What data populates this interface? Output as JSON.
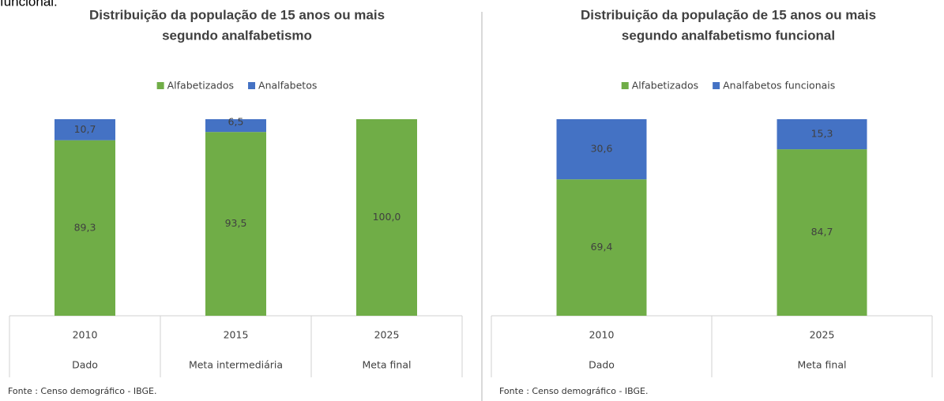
{
  "page_text": "funcional.",
  "chart_data": [
    {
      "type": "bar",
      "stacked": true,
      "title": "Distribuição da população de 15 anos ou mais",
      "subtitle": "segundo analfabetismo",
      "categories": [
        "2010",
        "2015",
        "2025"
      ],
      "category_labels": [
        "Dado",
        "Meta intermediária",
        "Meta final"
      ],
      "series": [
        {
          "name": "Alfabetizados",
          "color": "#70ad47",
          "values": [
            89.3,
            93.5,
            100.0
          ],
          "value_labels": [
            "89,3",
            "93,5",
            "100,0"
          ]
        },
        {
          "name": "Analfabetos",
          "color": "#4472c4",
          "values": [
            10.7,
            6.5,
            null
          ],
          "value_labels": [
            "10,7",
            "6,5",
            null
          ]
        }
      ],
      "ylim": [
        0,
        100
      ],
      "legend": "top",
      "source": "Fonte : Censo demográfico - IBGE."
    },
    {
      "type": "bar",
      "stacked": true,
      "title": "Distribuição da população de 15 anos ou mais",
      "subtitle": "segundo analfabetismo funcional",
      "categories": [
        "2010",
        "2025"
      ],
      "category_labels": [
        "Dado",
        "Meta final"
      ],
      "series": [
        {
          "name": "Alfabetizados",
          "color": "#70ad47",
          "values": [
            69.4,
            84.7
          ],
          "value_labels": [
            "69,4",
            "84,7"
          ]
        },
        {
          "name": "Analfabetos funcionais",
          "color": "#4472c4",
          "values": [
            30.6,
            15.3
          ],
          "value_labels": [
            "30,6",
            "15,3"
          ]
        }
      ],
      "ylim": [
        0,
        100
      ],
      "legend": "top",
      "source": "Fonte : Censo demográfico - IBGE."
    }
  ]
}
